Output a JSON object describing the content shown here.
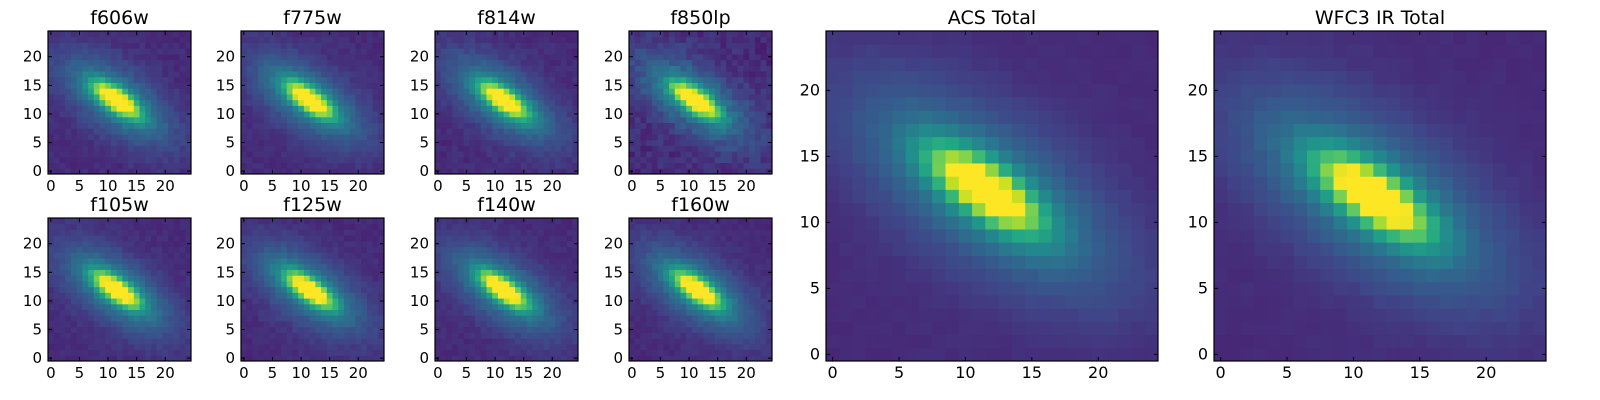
{
  "chart_data": {
    "type": "heatmap",
    "colormap": "viridis",
    "pixels_per_side": 25,
    "panels": [
      {
        "title": "f606w",
        "x_ticks": [
          0,
          5,
          10,
          15,
          20
        ],
        "y_ticks": [
          0,
          5,
          10,
          15,
          20
        ],
        "peak_x": 11.5,
        "peak_y": 12.5,
        "noise": 0.06,
        "orientation_deg": -35
      },
      {
        "title": "f775w",
        "x_ticks": [
          0,
          5,
          10,
          15,
          20
        ],
        "y_ticks": [
          0,
          5,
          10,
          15,
          20
        ],
        "peak_x": 11.5,
        "peak_y": 12.5,
        "noise": 0.05,
        "orientation_deg": -35
      },
      {
        "title": "f814w",
        "x_ticks": [
          0,
          5,
          10,
          15,
          20
        ],
        "y_ticks": [
          0,
          5,
          10,
          15,
          20
        ],
        "peak_x": 11.5,
        "peak_y": 12.5,
        "noise": 0.06,
        "orientation_deg": -35
      },
      {
        "title": "f850lp",
        "x_ticks": [
          0,
          5,
          10,
          15,
          20
        ],
        "y_ticks": [
          0,
          5,
          10,
          15,
          20
        ],
        "peak_x": 11.0,
        "peak_y": 12.5,
        "noise": 0.1,
        "orientation_deg": -35
      },
      {
        "title": "f105w",
        "x_ticks": [
          0,
          5,
          10,
          15,
          20
        ],
        "y_ticks": [
          0,
          5,
          10,
          15,
          20
        ],
        "peak_x": 11.5,
        "peak_y": 12.0,
        "noise": 0.05,
        "orientation_deg": -35
      },
      {
        "title": "f125w",
        "x_ticks": [
          0,
          5,
          10,
          15,
          20
        ],
        "y_ticks": [
          0,
          5,
          10,
          15,
          20
        ],
        "peak_x": 11.5,
        "peak_y": 12.0,
        "noise": 0.05,
        "orientation_deg": -35
      },
      {
        "title": "f140w",
        "x_ticks": [
          0,
          5,
          10,
          15,
          20
        ],
        "y_ticks": [
          0,
          5,
          10,
          15,
          20
        ],
        "peak_x": 11.5,
        "peak_y": 12.0,
        "noise": 0.05,
        "orientation_deg": -35
      },
      {
        "title": "f160w",
        "x_ticks": [
          0,
          5,
          10,
          15,
          20
        ],
        "y_ticks": [
          0,
          5,
          10,
          15,
          20
        ],
        "peak_x": 11.5,
        "peak_y": 12.0,
        "noise": 0.05,
        "orientation_deg": -35
      },
      {
        "title": "ACS Total",
        "x_ticks": [
          0,
          5,
          10,
          15,
          20
        ],
        "y_ticks": [
          0,
          5,
          10,
          15,
          20
        ],
        "peak_x": 11.5,
        "peak_y": 12.5,
        "noise": 0.02,
        "orientation_deg": -35
      },
      {
        "title": "WFC3 IR Total",
        "x_ticks": [
          0,
          5,
          10,
          15,
          20
        ],
        "y_ticks": [
          0,
          5,
          10,
          15,
          20
        ],
        "peak_x": 11.5,
        "peak_y": 12.0,
        "noise": 0.02,
        "orientation_deg": -35
      }
    ]
  }
}
